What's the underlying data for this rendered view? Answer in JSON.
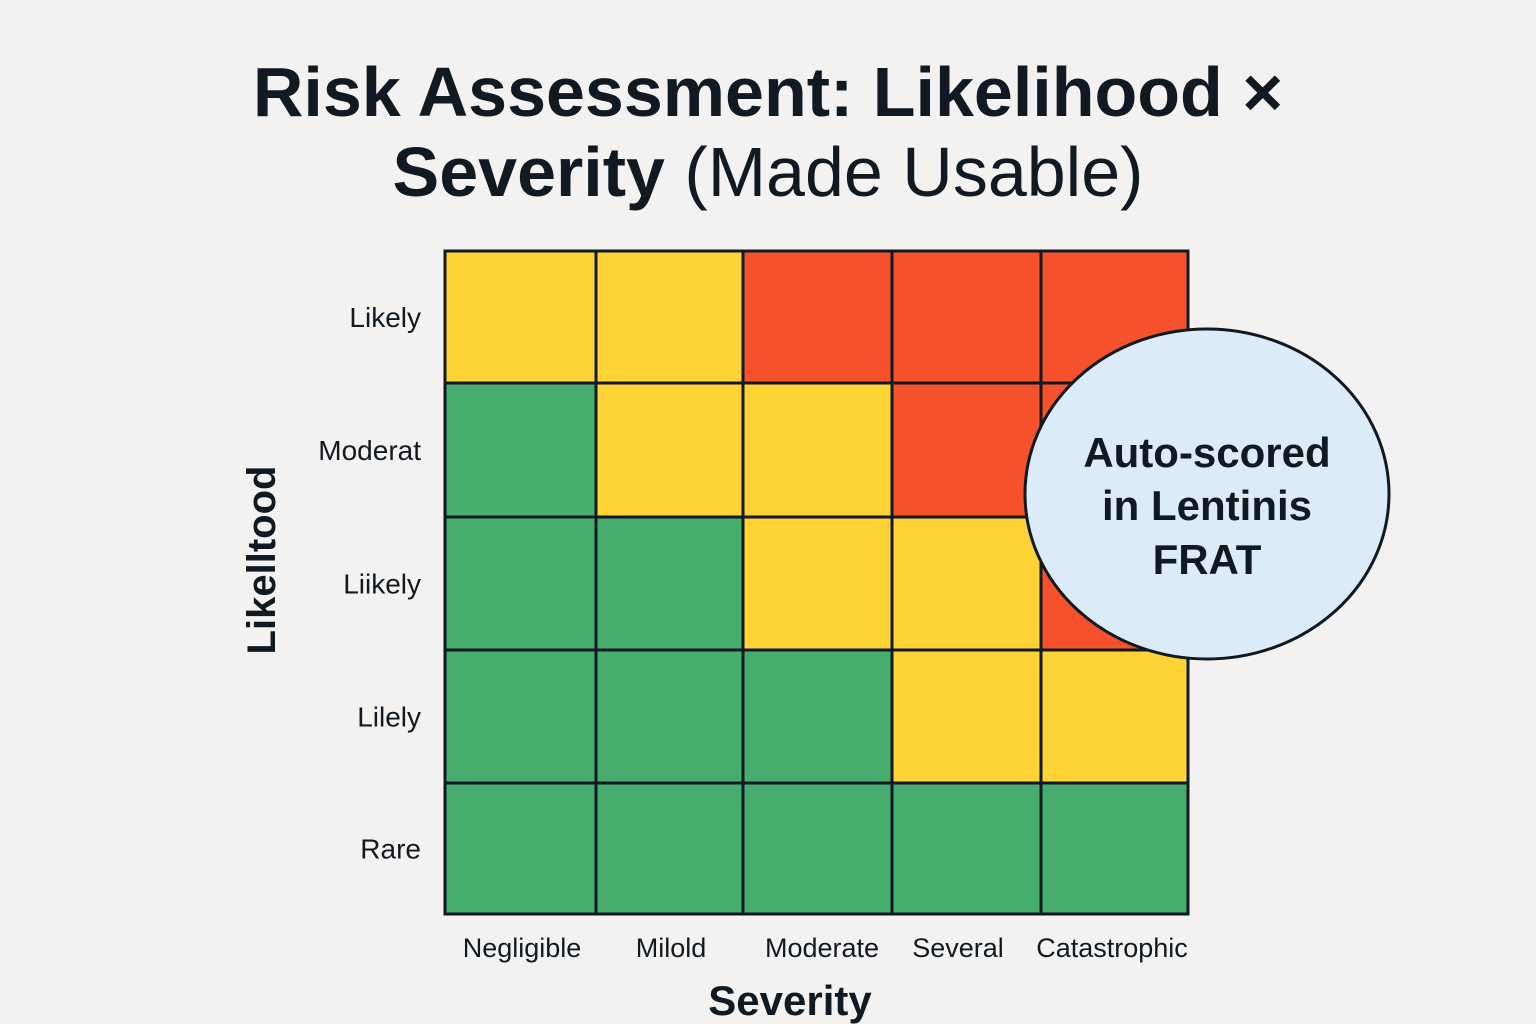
{
  "title": {
    "line1": "Risk Assessment: Likelihood ×",
    "line2_bold": "Severity",
    "line2_light": " (Made Usable)"
  },
  "chart_data": {
    "type": "heatmap",
    "title": "Risk Assessment: Likelihood × Severity (Made Usable)",
    "xlabel": "Severity",
    "ylabel": "Likelltood",
    "x_categories": [
      "Negligible",
      "Milold",
      "Moderate",
      "Several",
      "Catastrophic"
    ],
    "y_categories": [
      "Likely",
      "Moderat",
      "Liikely",
      "Lilely",
      "Rare"
    ],
    "levels": {
      "green": "#47ad6f",
      "yellow": "#fed336",
      "red": "#f5512c"
    },
    "cells": [
      [
        "yellow",
        "yellow",
        "red",
        "red",
        "red"
      ],
      [
        "green",
        "yellow",
        "yellow",
        "red",
        "red"
      ],
      [
        "green",
        "green",
        "yellow",
        "yellow",
        "red"
      ],
      [
        "green",
        "green",
        "green",
        "yellow",
        "yellow"
      ],
      [
        "green",
        "green",
        "green",
        "green",
        "green"
      ]
    ],
    "grid_line_color": "#111a22",
    "callout": {
      "lines": [
        "Auto-scored",
        "in Lentinis",
        "FRAT"
      ],
      "fill": "#dcebf8"
    }
  }
}
